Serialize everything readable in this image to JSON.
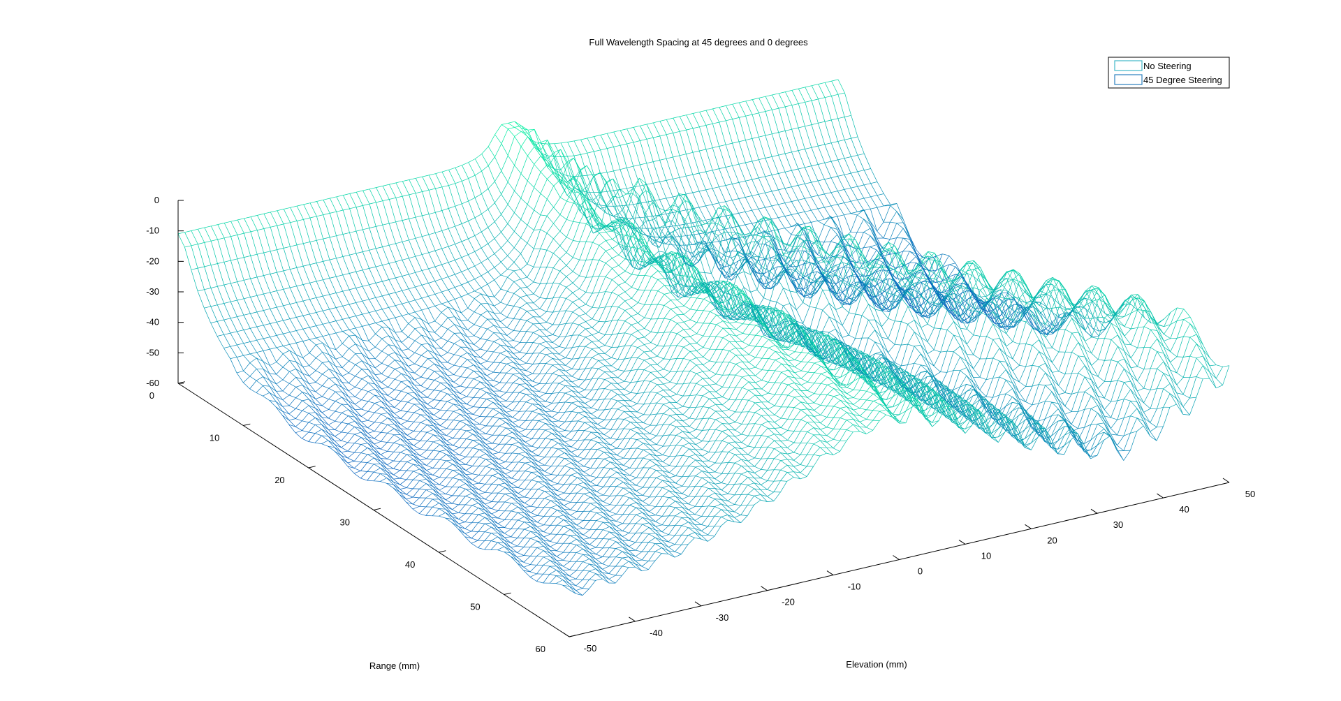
{
  "chart_data": {
    "type": "surface",
    "title": "Full Wavelength Spacing at 45 degrees and 0 degrees",
    "xlabel": "Elevation (mm)",
    "ylabel": "Range (mm)",
    "zlabel": "",
    "x_ticks": [
      -50,
      -40,
      -30,
      -20,
      -10,
      0,
      10,
      20,
      30,
      40,
      50
    ],
    "y_ticks": [
      0,
      10,
      20,
      30,
      40,
      50,
      60
    ],
    "z_ticks": [
      0,
      -10,
      -20,
      -30,
      -40,
      -50,
      -60
    ],
    "xlim": [
      -50,
      50
    ],
    "ylim": [
      0,
      60
    ],
    "zlim": [
      -60,
      0
    ],
    "grid": false,
    "legend_position": "top-right",
    "colormap": [
      "#0a3cc8",
      "#00f0a0"
    ],
    "series": [
      {
        "name": "No Steering",
        "color": "#3fb8c8",
        "description_peak_elevation": 0,
        "range_samples": [
          0,
          10,
          20,
          30,
          40,
          50,
          60
        ],
        "elevation_samples": [
          -50,
          -30,
          -10,
          0,
          10,
          30,
          50
        ],
        "z_values_db": [
          [
            -8,
            -8,
            -8,
            -4,
            -8,
            -8,
            -8
          ],
          [
            -30,
            -25,
            -18,
            -8,
            -18,
            -25,
            -30
          ],
          [
            -42,
            -36,
            -28,
            -12,
            -28,
            -36,
            -42
          ],
          [
            -48,
            -42,
            -35,
            -16,
            -35,
            -42,
            -48
          ],
          [
            -52,
            -46,
            -40,
            -20,
            -40,
            -46,
            -52
          ],
          [
            -54,
            -48,
            -44,
            -24,
            -44,
            -48,
            -54
          ],
          [
            -56,
            -50,
            -46,
            -28,
            -46,
            -50,
            -56
          ]
        ]
      },
      {
        "name": "45 Degree Steering",
        "color": "#2a7fbf",
        "description_peak_elevation": 45,
        "range_samples": [
          0,
          10,
          20,
          30,
          40,
          50,
          60
        ],
        "elevation_samples": [
          -50,
          -30,
          -10,
          0,
          10,
          30,
          50
        ],
        "z_values_db": [
          [
            -10,
            -10,
            -10,
            -10,
            -12,
            -14,
            -16
          ],
          [
            -40,
            -38,
            -36,
            -34,
            -30,
            -26,
            -22
          ],
          [
            -50,
            -48,
            -46,
            -44,
            -40,
            -34,
            -28
          ],
          [
            -55,
            -54,
            -52,
            -50,
            -46,
            -40,
            -34
          ],
          [
            -58,
            -57,
            -56,
            -54,
            -50,
            -44,
            -38
          ],
          [
            -60,
            -59,
            -58,
            -56,
            -52,
            -46,
            -40
          ],
          [
            -60,
            -60,
            -59,
            -58,
            -54,
            -48,
            -42
          ]
        ]
      }
    ]
  }
}
